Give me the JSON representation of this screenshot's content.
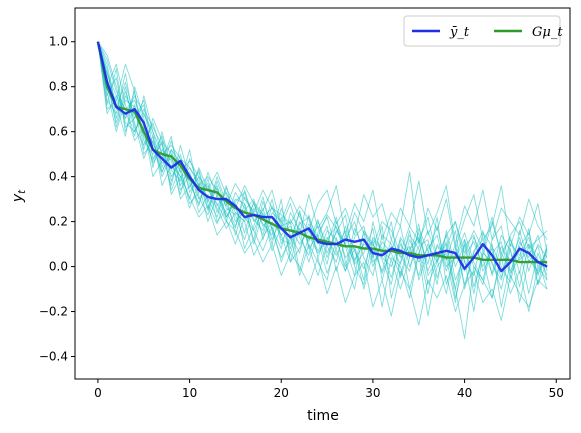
{
  "chart_data": {
    "type": "line",
    "xlabel": "time",
    "ylabel": "y_t",
    "xlim": [
      -2.5,
      51.5
    ],
    "ylim": [
      -0.5,
      1.15
    ],
    "xticks": [
      0,
      10,
      20,
      30,
      40,
      50
    ],
    "yticks": [
      -0.4,
      -0.2,
      0.0,
      0.2,
      0.4,
      0.6,
      0.8,
      1.0
    ],
    "ytick_labels": [
      "−0.4",
      "−0.2",
      "0.0",
      "0.2",
      "0.4",
      "0.6",
      "0.8",
      "1.0"
    ],
    "legend_position": "top-right",
    "x": [
      0,
      1,
      2,
      3,
      4,
      5,
      6,
      7,
      8,
      9,
      10,
      11,
      12,
      13,
      14,
      15,
      16,
      17,
      18,
      19,
      20,
      21,
      22,
      23,
      24,
      25,
      26,
      27,
      28,
      29,
      30,
      31,
      32,
      33,
      34,
      35,
      36,
      37,
      38,
      39,
      40,
      41,
      42,
      43,
      44,
      45,
      46,
      47,
      48,
      49
    ],
    "series": [
      {
        "name": "ȳ_t",
        "color": "#1f2fe8",
        "values": [
          1.0,
          0.82,
          0.71,
          0.68,
          0.7,
          0.64,
          0.52,
          0.48,
          0.44,
          0.47,
          0.4,
          0.34,
          0.31,
          0.3,
          0.3,
          0.27,
          0.22,
          0.23,
          0.22,
          0.22,
          0.17,
          0.13,
          0.15,
          0.17,
          0.11,
          0.1,
          0.1,
          0.12,
          0.11,
          0.12,
          0.06,
          0.05,
          0.08,
          0.07,
          0.05,
          0.04,
          0.05,
          0.06,
          0.07,
          0.06,
          -0.01,
          0.04,
          0.1,
          0.05,
          -0.02,
          0.02,
          0.08,
          0.06,
          0.02,
          0.0
        ]
      },
      {
        "name": "Gμ_t",
        "color": "#2e9a2e",
        "values": [
          1.0,
          0.8,
          0.71,
          0.7,
          0.69,
          0.6,
          0.52,
          0.5,
          0.49,
          0.45,
          0.39,
          0.35,
          0.34,
          0.33,
          0.29,
          0.26,
          0.24,
          0.23,
          0.21,
          0.19,
          0.17,
          0.16,
          0.15,
          0.13,
          0.12,
          0.11,
          0.1,
          0.09,
          0.09,
          0.08,
          0.08,
          0.07,
          0.07,
          0.06,
          0.06,
          0.05,
          0.05,
          0.05,
          0.04,
          0.04,
          0.04,
          0.04,
          0.03,
          0.03,
          0.03,
          0.03,
          0.02,
          0.02,
          0.02,
          0.02
        ]
      }
    ],
    "sample_paths": {
      "color": "#17bfbf",
      "values": [
        [
          1.0,
          0.92,
          0.78,
          0.7,
          0.74,
          0.62,
          0.55,
          0.46,
          0.48,
          0.4,
          0.42,
          0.3,
          0.36,
          0.27,
          0.33,
          0.24,
          0.2,
          0.28,
          0.18,
          0.22,
          0.14,
          0.18,
          0.1,
          0.16,
          0.07,
          0.13,
          0.05,
          0.14,
          0.03,
          0.1,
          0.08,
          -0.02,
          0.12,
          0.04,
          0.09,
          -0.04,
          0.1,
          0.02,
          0.14,
          -0.06,
          0.05,
          0.11,
          0.0,
          0.08,
          -0.05,
          0.12,
          0.03,
          0.07,
          -0.03,
          0.05
        ],
        [
          1.0,
          0.76,
          0.84,
          0.62,
          0.66,
          0.72,
          0.48,
          0.55,
          0.38,
          0.5,
          0.33,
          0.4,
          0.26,
          0.35,
          0.22,
          0.3,
          0.28,
          0.16,
          0.26,
          0.12,
          0.22,
          0.08,
          0.2,
          0.12,
          0.18,
          0.04,
          0.16,
          0.1,
          0.02,
          0.15,
          0.0,
          0.11,
          0.06,
          -0.04,
          0.12,
          0.02,
          0.08,
          0.14,
          -0.02,
          0.1,
          -0.08,
          0.06,
          0.16,
          -0.04,
          0.09,
          0.02,
          0.13,
          -0.02,
          0.1,
          0.04
        ],
        [
          1.0,
          0.88,
          0.66,
          0.8,
          0.6,
          0.68,
          0.58,
          0.42,
          0.52,
          0.36,
          0.44,
          0.38,
          0.25,
          0.4,
          0.28,
          0.18,
          0.31,
          0.24,
          0.14,
          0.27,
          0.1,
          0.21,
          0.13,
          0.05,
          0.2,
          0.09,
          0.02,
          0.18,
          0.07,
          -0.01,
          0.13,
          0.08,
          -0.05,
          0.1,
          0.04,
          0.15,
          -0.02,
          0.09,
          0.03,
          0.16,
          -0.1,
          0.07,
          0.12,
          0.01,
          -0.06,
          0.1,
          0.05,
          0.13,
          -0.04,
          0.08
        ],
        [
          1.0,
          0.7,
          0.74,
          0.66,
          0.78,
          0.56,
          0.5,
          0.58,
          0.4,
          0.46,
          0.37,
          0.28,
          0.39,
          0.24,
          0.36,
          0.2,
          0.25,
          0.3,
          0.12,
          0.24,
          0.2,
          0.06,
          0.19,
          0.22,
          0.04,
          0.16,
          0.12,
          0.0,
          0.17,
          0.08,
          0.11,
          -0.03,
          0.07,
          0.18,
          0.0,
          0.09,
          0.12,
          -0.05,
          0.08,
          0.2,
          0.02,
          -0.04,
          0.15,
          0.09,
          0.0,
          -0.07,
          0.11,
          0.04,
          0.14,
          -0.02
        ],
        [
          1.0,
          0.84,
          0.62,
          0.76,
          0.68,
          0.6,
          0.46,
          0.52,
          0.47,
          0.32,
          0.48,
          0.36,
          0.3,
          0.22,
          0.35,
          0.27,
          0.15,
          0.29,
          0.23,
          0.1,
          0.26,
          0.14,
          0.06,
          0.23,
          0.1,
          0.18,
          -0.02,
          0.12,
          0.2,
          0.04,
          -0.04,
          0.14,
          0.1,
          0.01,
          0.16,
          -0.06,
          0.06,
          0.18,
          0.0,
          0.04,
          0.12,
          -0.09,
          0.05,
          0.2,
          0.06,
          -0.02,
          0.09,
          0.15,
          0.0,
          0.06
        ],
        [
          1.0,
          0.8,
          0.9,
          0.72,
          0.58,
          0.76,
          0.6,
          0.44,
          0.56,
          0.42,
          0.3,
          0.44,
          0.34,
          0.28,
          0.2,
          0.33,
          0.26,
          0.12,
          0.29,
          0.17,
          0.08,
          0.24,
          0.16,
          0.02,
          0.15,
          0.22,
          0.07,
          -0.02,
          0.13,
          0.18,
          0.02,
          0.06,
          0.2,
          -0.05,
          0.08,
          0.13,
          0.01,
          0.22,
          -0.08,
          0.05,
          0.15,
          0.02,
          -0.06,
          0.12,
          0.18,
          -0.03,
          0.04,
          0.1,
          -0.08,
          0.02
        ],
        [
          1.0,
          0.74,
          0.68,
          0.86,
          0.62,
          0.54,
          0.64,
          0.5,
          0.36,
          0.54,
          0.39,
          0.27,
          0.42,
          0.31,
          0.24,
          0.17,
          0.34,
          0.21,
          0.16,
          0.3,
          0.12,
          0.1,
          0.25,
          0.08,
          0.14,
          0.01,
          0.2,
          0.09,
          -0.04,
          0.16,
          0.1,
          0.03,
          -0.08,
          0.13,
          0.06,
          0.19,
          -0.04,
          0.03,
          0.11,
          -0.1,
          0.09,
          0.14,
          -0.02,
          0.06,
          0.11,
          -0.05,
          0.16,
          0.02,
          0.09,
          -0.06
        ],
        [
          1.0,
          0.86,
          0.72,
          0.58,
          0.8,
          0.66,
          0.44,
          0.6,
          0.43,
          0.38,
          0.52,
          0.31,
          0.23,
          0.38,
          0.26,
          0.23,
          0.12,
          0.26,
          0.19,
          0.14,
          0.3,
          0.02,
          0.17,
          0.11,
          0.21,
          0.06,
          0.15,
          0.23,
          0.01,
          0.06,
          0.17,
          -0.06,
          0.09,
          0.05,
          -0.02,
          0.17,
          0.07,
          -0.08,
          0.16,
          0.0,
          0.1,
          -0.12,
          0.08,
          -0.03,
          0.14,
          0.07,
          -0.09,
          0.1,
          0.03,
          -0.1
        ],
        [
          1.0,
          0.78,
          0.6,
          0.74,
          0.71,
          0.5,
          0.56,
          0.4,
          0.5,
          0.3,
          0.36,
          0.42,
          0.28,
          0.19,
          0.31,
          0.14,
          0.28,
          0.1,
          0.24,
          0.07,
          0.18,
          0.2,
          -0.02,
          0.14,
          0.06,
          0.12,
          0.18,
          0.04,
          0.09,
          -0.06,
          0.2,
          0.04,
          0.0,
          0.12,
          -0.1,
          0.06,
          0.16,
          0.03,
          -0.12,
          0.08,
          -0.02,
          0.13,
          0.04,
          -0.14,
          0.06,
          0.13,
          -0.03,
          0.17,
          -0.08,
          0.1
        ],
        [
          1.0,
          0.94,
          0.8,
          0.64,
          0.6,
          0.7,
          0.62,
          0.54,
          0.34,
          0.44,
          0.28,
          0.33,
          0.37,
          0.2,
          0.25,
          0.28,
          0.08,
          0.18,
          0.31,
          0.16,
          0.04,
          0.12,
          0.24,
          0.09,
          -0.04,
          0.1,
          0.22,
          0.02,
          -0.1,
          0.12,
          0.04,
          0.18,
          -0.14,
          0.02,
          0.14,
          0.08,
          -0.12,
          0.1,
          0.04,
          -0.16,
          0.12,
          0.0,
          -0.08,
          0.1,
          -0.18,
          0.02,
          0.08,
          -0.12,
          0.06,
          -0.04
        ],
        [
          1.0,
          0.68,
          0.76,
          0.7,
          0.56,
          0.62,
          0.4,
          0.47,
          0.58,
          0.34,
          0.41,
          0.24,
          0.32,
          0.26,
          0.17,
          0.24,
          0.2,
          0.05,
          0.13,
          0.2,
          0.14,
          0.02,
          0.08,
          0.19,
          0.12,
          -0.03,
          0.08,
          0.16,
          0.0,
          -0.08,
          0.12,
          0.07,
          0.03,
          -0.1,
          0.04,
          0.12,
          -0.08,
          0.02,
          0.1,
          -0.14,
          0.03,
          -0.2,
          0.06,
          0.02,
          -0.1,
          0.08,
          -0.16,
          0.03,
          -0.02,
          0.08
        ],
        [
          1.0,
          0.82,
          0.64,
          0.78,
          0.64,
          0.48,
          0.58,
          0.36,
          0.45,
          0.4,
          0.26,
          0.37,
          0.2,
          0.32,
          0.21,
          0.1,
          0.22,
          0.16,
          0.07,
          0.18,
          0.02,
          0.14,
          -0.04,
          0.1,
          0.02,
          -0.06,
          0.13,
          -0.02,
          0.08,
          -0.1,
          0.06,
          -0.18,
          0.04,
          0.0,
          -0.14,
          0.06,
          -0.22,
          0.0,
          0.06,
          -0.1,
          -0.32,
          0.0,
          -0.06,
          -0.14,
          0.04,
          -0.12,
          -0.02,
          -0.2,
          0.0,
          -0.06
        ],
        [
          1.0,
          0.72,
          0.88,
          0.6,
          0.72,
          0.58,
          0.47,
          0.56,
          0.32,
          0.4,
          0.31,
          0.22,
          0.27,
          0.14,
          0.2,
          0.16,
          0.06,
          0.12,
          0.02,
          0.1,
          -0.04,
          0.06,
          0.0,
          -0.08,
          0.04,
          -0.12,
          0.0,
          -0.16,
          -0.04,
          0.02,
          -0.18,
          -0.06,
          -0.22,
          -0.02,
          -0.1,
          -0.26,
          -0.06,
          -0.14,
          -0.04,
          -0.2,
          -0.08,
          -0.02,
          -0.16,
          -0.1,
          -0.24,
          -0.04,
          -0.12,
          -0.18,
          -0.06,
          -0.1
        ],
        [
          1.0,
          0.9,
          0.7,
          0.82,
          0.66,
          0.74,
          0.53,
          0.42,
          0.52,
          0.46,
          0.35,
          0.43,
          0.29,
          0.36,
          0.22,
          0.29,
          0.33,
          0.2,
          0.25,
          0.34,
          0.18,
          0.28,
          0.14,
          0.32,
          0.17,
          0.24,
          0.36,
          0.14,
          0.28,
          0.2,
          0.34,
          0.12,
          0.24,
          0.18,
          0.42,
          0.1,
          0.26,
          0.16,
          0.3,
          0.08,
          0.21,
          0.32,
          0.12,
          0.18,
          0.36,
          0.09,
          0.22,
          0.14,
          0.28,
          0.06
        ],
        [
          1.0,
          0.86,
          0.76,
          0.66,
          0.76,
          0.68,
          0.6,
          0.5,
          0.54,
          0.48,
          0.44,
          0.36,
          0.4,
          0.34,
          0.27,
          0.37,
          0.3,
          0.24,
          0.34,
          0.26,
          0.2,
          0.31,
          0.22,
          0.16,
          0.28,
          0.34,
          0.19,
          0.26,
          0.14,
          0.32,
          0.22,
          0.28,
          0.12,
          0.26,
          0.18,
          0.38,
          0.14,
          0.24,
          0.36,
          0.1,
          0.27,
          0.18,
          0.34,
          0.12,
          0.26,
          0.2,
          0.14,
          0.3,
          0.18,
          0.12
        ],
        [
          1.0,
          0.8,
          0.74,
          0.9,
          0.78,
          0.52,
          0.66,
          0.56,
          0.5,
          0.42,
          0.47,
          0.4,
          0.34,
          0.42,
          0.32,
          0.26,
          0.36,
          0.28,
          0.22,
          0.26,
          0.23,
          0.19,
          0.27,
          0.21,
          0.13,
          0.23,
          0.17,
          0.1,
          0.24,
          0.15,
          0.09,
          0.2,
          0.16,
          0.06,
          0.18,
          0.11,
          0.22,
          0.04,
          0.14,
          0.2,
          0.06,
          0.16,
          0.08,
          0.22,
          0.04,
          0.14,
          0.2,
          0.08,
          0.12,
          0.16
        ]
      ]
    }
  },
  "legend": {
    "items": [
      {
        "label": "ȳ_t",
        "color": "#1f2fe8"
      },
      {
        "label": "Gμ_t",
        "color": "#2e9a2e"
      }
    ]
  }
}
